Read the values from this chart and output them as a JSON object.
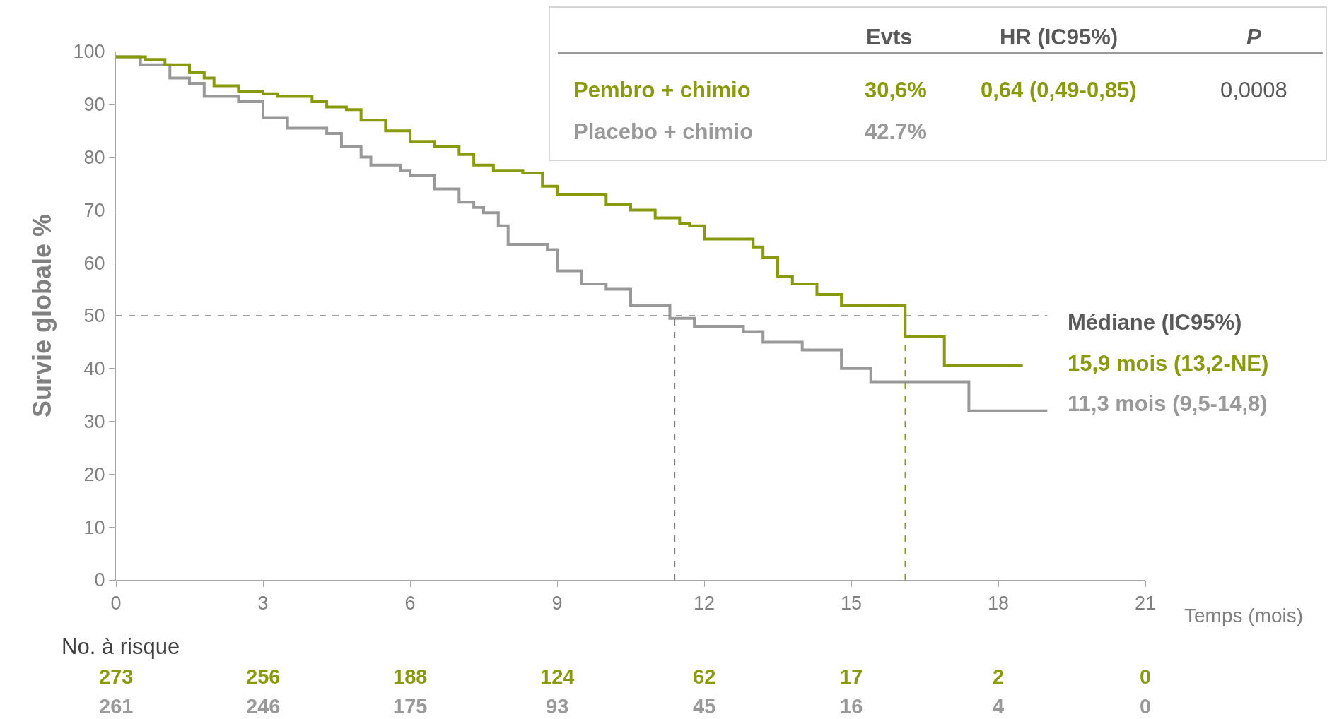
{
  "chart_data": {
    "type": "step",
    "ylabel": "Survie globale %",
    "xlabel": "Temps (mois)",
    "xlim": [
      0,
      21
    ],
    "xticks": [
      0,
      3,
      6,
      9,
      12,
      15,
      18,
      21
    ],
    "ylim": [
      0,
      100
    ],
    "yticks": [
      0,
      10,
      20,
      30,
      40,
      50,
      60,
      70,
      80,
      90,
      100
    ],
    "grid": false,
    "marker": "none",
    "line_style": "solid",
    "series": [
      {
        "name": "Pembro + chimio",
        "color": "#8a9a0e",
        "x": [
          0,
          0.6,
          1,
          1.5,
          1.8,
          2,
          2.5,
          3,
          3.3,
          4,
          4.3,
          4.7,
          5,
          5.5,
          6,
          6.5,
          7,
          7.3,
          7.7,
          8.3,
          8.7,
          9,
          10,
          10.5,
          11,
          11.5,
          11.7,
          12,
          13,
          13.2,
          13.5,
          13.8,
          14.3,
          14.8,
          16.1,
          16.9,
          18.5
        ],
        "values": [
          99,
          98.5,
          97.5,
          96,
          95,
          93.5,
          92.5,
          92,
          91.5,
          90.5,
          89.5,
          89,
          87,
          85,
          83,
          82,
          80.5,
          78.5,
          77.5,
          77,
          74.5,
          73,
          71,
          70,
          68.5,
          67.5,
          67,
          64.5,
          63,
          61,
          57.5,
          56,
          54,
          52,
          46,
          40.5,
          40.5
        ]
      },
      {
        "name": "Placebo + chimio",
        "color": "#999999",
        "x": [
          0,
          0.5,
          1.1,
          1.5,
          1.8,
          2.5,
          3,
          3.5,
          4.3,
          4.6,
          5,
          5.2,
          5.8,
          6,
          6.5,
          7,
          7.3,
          7.5,
          7.8,
          8,
          8.8,
          9,
          9.5,
          10,
          10.5,
          11.3,
          11.8,
          12.8,
          13.2,
          14,
          14.8,
          15.4,
          17.4,
          19
        ],
        "values": [
          99,
          97.5,
          95,
          94,
          91.5,
          90.5,
          87.5,
          85.5,
          84.5,
          82,
          80,
          78.5,
          77.5,
          76.5,
          74,
          71.5,
          70.5,
          69.5,
          67,
          63.5,
          62.5,
          58.5,
          56,
          55,
          52,
          49.5,
          48,
          47,
          45,
          43.5,
          40,
          37.5,
          32,
          32
        ]
      }
    ],
    "ref_lines": [
      {
        "axis": "y",
        "value": 50,
        "color": "#808080",
        "line_style": "dashed"
      },
      {
        "axis": "x",
        "value": 11.4,
        "color": "#808080",
        "line_style": "dashed"
      },
      {
        "axis": "x",
        "value": 16.1,
        "color": "#8a9a0e",
        "line_style": "dashed"
      }
    ],
    "annotations": [
      "Evts",
      "HR (IC95%)",
      "P",
      "30,6%",
      "0,64 (0,49-0,85)",
      "0,0008",
      "42.7%",
      "Médiane (IC95%)",
      "15,9 mois (13,2-NE)",
      "11,3 mois (9,5-14,8)",
      "No. à risque",
      "273",
      "256",
      "188",
      "124",
      "62",
      "17",
      "2",
      "0",
      "261",
      "246",
      "175",
      "93",
      "45",
      "16",
      "4",
      "0"
    ]
  }
}
